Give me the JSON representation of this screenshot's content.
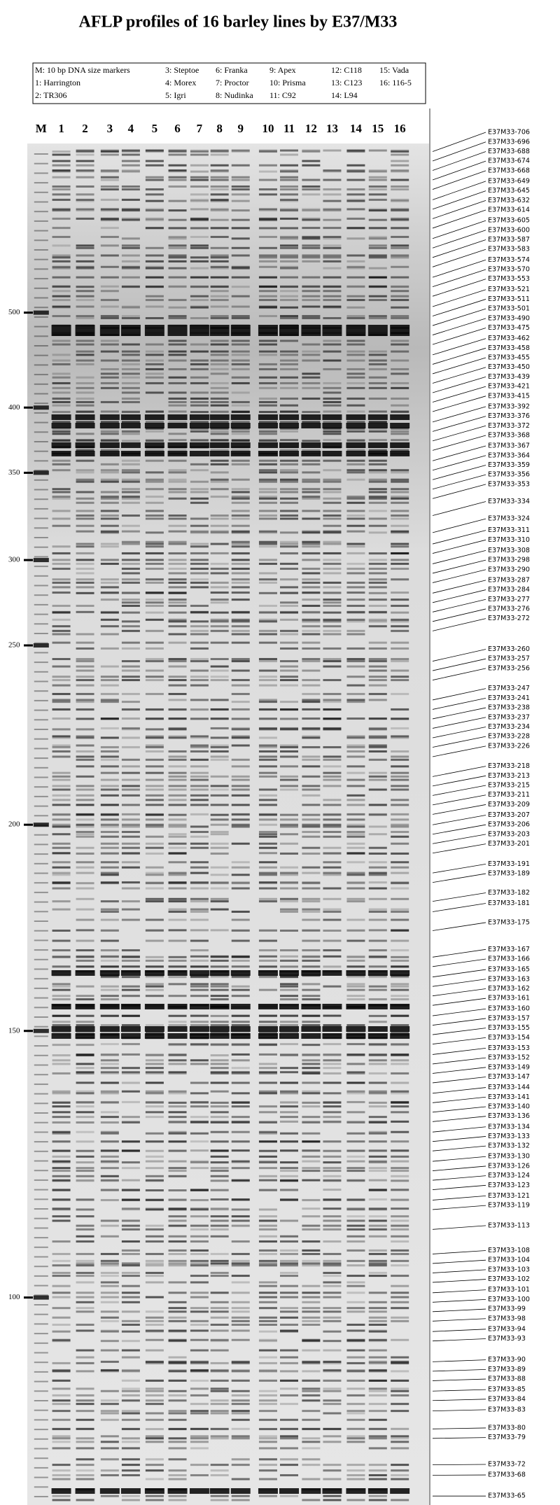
{
  "title": "AFLP profiles of 16 barley lines by E37/M33",
  "legend": [
    "M: 10 bp DNA size markers",
    "1: Harrington",
    "2: TR306",
    "3: Steptoe",
    "4: Morex",
    "5: Igri",
    "6: Franka",
    "7: Proctor",
    "8: Nudinka",
    "9: Apex",
    "10: Prisma",
    "11: C92",
    "12: C118",
    "13: C123",
    "14: L94",
    "15: Vada",
    "16: 116-5"
  ],
  "lanes": [
    "M",
    "1",
    "2",
    "3",
    "4",
    "5",
    "6",
    "7",
    "8",
    "9",
    "10",
    "11",
    "12",
    "13",
    "14",
    "15",
    "16"
  ],
  "size_markers": [
    500,
    400,
    350,
    300,
    250,
    200,
    150,
    100
  ],
  "band_labels": [
    "E37M33-706",
    "E37M33-696",
    "E37M33-688",
    "E37M33-674",
    "E37M33-668",
    "E37M33-649",
    "E37M33-645",
    "E37M33-632",
    "E37M33-614",
    "E37M33-605",
    "E37M33-600",
    "E37M33-587",
    "E37M33-583",
    "E37M33-574",
    "E37M33-570",
    "E37M33-553",
    "E37M33-521",
    "E37M33-511",
    "E37M33-501",
    "E37M33-490",
    "E37M33-475",
    "E37M33-462",
    "E37M33-458",
    "E37M33-455",
    "E37M33-450",
    "E37M33-439",
    "E37M33-421",
    "E37M33-415",
    "E37M33-392",
    "E37M33-376",
    "E37M33-372",
    "E37M33-368",
    "E37M33-367",
    "E37M33-364",
    "E37M33-359",
    "E37M33-356",
    "E37M33-353",
    "E37M33-334",
    "E37M33-324",
    "E37M33-311",
    "E37M33-310",
    "E37M33-308",
    "E37M33-298",
    "E37M33-290",
    "E37M33-287",
    "E37M33-284",
    "E37M33-277",
    "E37M33-276",
    "E37M33-272",
    "E37M33-260",
    "E37M33-257",
    "E37M33-256",
    "E37M33-247",
    "E37M33-241",
    "E37M33-238",
    "E37M33-237",
    "E37M33-234",
    "E37M33-228",
    "E37M33-226",
    "E37M33-218",
    "E37M33-213",
    "E37M33-215",
    "E37M33-211",
    "E37M33-209",
    "E37M33-207",
    "E37M33-206",
    "E37M33-203",
    "E37M33-201",
    "E37M33-191",
    "E37M33-189",
    "E37M33-182",
    "E37M33-181",
    "E37M33-175",
    "E37M33-167",
    "E37M33-166",
    "E37M33-165",
    "E37M33-163",
    "E37M33-162",
    "E37M33-161",
    "E37M33-160",
    "E37M33-157",
    "E37M33-155",
    "E37M33-154",
    "E37M33-153",
    "E37M33-152",
    "E37M33-149",
    "E37M33-147",
    "E37M33-144",
    "E37M33-141",
    "E37M33-140",
    "E37M33-136",
    "E37M33-134",
    "E37M33-133",
    "E37M33-132",
    "E37M33-130",
    "E37M33-126",
    "E37M33-124",
    "E37M33-123",
    "E37M33-121",
    "E37M33-119",
    "E37M33-113",
    "E37M33-108",
    "E37M33-104",
    "E37M33-103",
    "E37M33-102",
    "E37M33-101",
    "E37M33-100",
    "E37M33-99",
    "E37M33-98",
    "E37M33-94",
    "E37M33-93",
    "E37M33-90",
    "E37M33-89",
    "E37M33-88",
    "E37M33-85",
    "E37M33-84",
    "E37M33-83",
    "E37M33-80",
    "E37M33-79",
    "E37M33-72",
    "E37M33-68",
    "E37M33-65"
  ]
}
